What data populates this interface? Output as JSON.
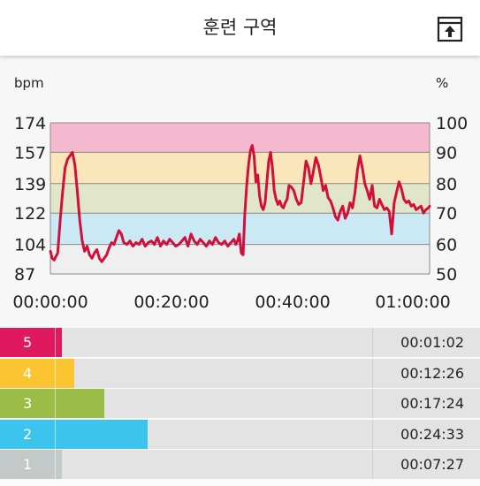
{
  "header": {
    "title": "훈련 구역",
    "export_icon": "export-icon"
  },
  "chart_data": {
    "type": "line",
    "left_unit": "bpm",
    "right_unit": "%",
    "y_ticks_left": [
      "174",
      "157",
      "139",
      "122",
      "104",
      "87"
    ],
    "y_ticks_right": [
      "100",
      "90",
      "80",
      "70",
      "60",
      "50"
    ],
    "x_ticks": [
      "00:00:00",
      "00:20:00",
      "00:40:00",
      "01:00:00"
    ],
    "ylim": [
      87,
      174
    ],
    "xlim_minutes": [
      0,
      62
    ],
    "bands": [
      {
        "from": 157,
        "to": 174,
        "color": "#f4b8cf"
      },
      {
        "from": 139,
        "to": 157,
        "color": "#fbe6bb"
      },
      {
        "from": 122,
        "to": 139,
        "color": "#e2e6c8"
      },
      {
        "from": 104,
        "to": 122,
        "color": "#cbe8f5"
      },
      {
        "from": 87,
        "to": 104,
        "color": "#efefef"
      }
    ],
    "line_color": "#d0103a",
    "series": [
      {
        "x": [
          0,
          0.3,
          0.6,
          0.9,
          1.2,
          1.6,
          2.0,
          2.4,
          2.8,
          3.2,
          3.6,
          4.0,
          4.4,
          4.8,
          5.2,
          5.6,
          6.0,
          6.4,
          6.8,
          7.2,
          7.6,
          8.0,
          8.4,
          8.8,
          9.2,
          9.6,
          10.0,
          10.4,
          10.8,
          11.2,
          11.6,
          12.0,
          12.5,
          13.0,
          13.5,
          14.0,
          14.5,
          15.0,
          15.5,
          16.0,
          16.5,
          17.0,
          17.5,
          18.0,
          18.5,
          19.0,
          19.5,
          20.0,
          20.5,
          21.0,
          21.5,
          22.0,
          22.5,
          23.0,
          23.5,
          24.0,
          24.5,
          25.0,
          25.5,
          26.0,
          26.5,
          27.0,
          27.5,
          28.0,
          28.5,
          29.0,
          29.5,
          30.0,
          30.3,
          30.6,
          30.9,
          31.2,
          31.5,
          31.8,
          32.1,
          32.4,
          32.7,
          33.0,
          33.3,
          33.6,
          33.9,
          34.2,
          34.5,
          34.8,
          35.1,
          35.4,
          35.7,
          36.0,
          36.3,
          36.6,
          36.9,
          37.2,
          37.5,
          37.8,
          38.1,
          38.4,
          38.7,
          39.0,
          39.4,
          39.8,
          40.2,
          40.6,
          41.0,
          41.4,
          41.8,
          42.2,
          42.6,
          43.0,
          43.4,
          43.8,
          44.2,
          44.6,
          45.0,
          45.4,
          45.8,
          46.2,
          46.6,
          47.0,
          47.4,
          47.8,
          48.2,
          48.6,
          49.0,
          49.4,
          49.8,
          50.2,
          50.6,
          51.0,
          51.4,
          51.8,
          52.2,
          52.6,
          53.0,
          53.4,
          53.8,
          54.2,
          54.6,
          55.0,
          55.4,
          55.8,
          56.2,
          56.6,
          57.0,
          57.4,
          57.8,
          58.2,
          58.6,
          59.0,
          59.4,
          59.8,
          60.2,
          60.6,
          61.0,
          61.4,
          61.8,
          62.0
        ],
        "y": [
          100,
          96,
          95,
          97,
          99,
          118,
          134,
          148,
          153,
          155,
          157,
          150,
          135,
          118,
          106,
          100,
          103,
          98,
          96,
          99,
          101,
          96,
          94,
          96,
          98,
          102,
          105,
          104,
          108,
          112,
          110,
          105,
          104,
          106,
          103,
          105,
          104,
          107,
          103,
          105,
          106,
          104,
          108,
          103,
          106,
          104,
          107,
          105,
          103,
          104,
          106,
          108,
          103,
          110,
          106,
          104,
          107,
          105,
          103,
          106,
          104,
          108,
          105,
          104,
          106,
          103,
          105,
          107,
          104,
          106,
          110,
          99,
          98,
          122,
          138,
          150,
          158,
          161,
          155,
          140,
          144,
          132,
          126,
          124,
          128,
          140,
          152,
          157,
          148,
          135,
          130,
          127,
          129,
          126,
          125,
          128,
          130,
          138,
          137,
          135,
          130,
          127,
          128,
          140,
          152,
          148,
          139,
          146,
          154,
          150,
          143,
          135,
          138,
          131,
          129,
          125,
          120,
          118,
          123,
          126,
          119,
          122,
          128,
          125,
          134,
          147,
          155,
          148,
          139,
          135,
          130,
          138,
          126,
          125,
          130,
          127,
          124,
          125,
          123,
          110,
          128,
          134,
          140,
          136,
          130,
          128,
          129,
          126,
          127,
          124,
          125,
          126,
          122,
          124,
          125,
          126
        ]
      }
    ]
  },
  "zones": [
    {
      "label": "5",
      "time": "00:01:02",
      "fraction": 0.0167,
      "color": "#e0195f"
    },
    {
      "label": "4",
      "time": "00:12:26",
      "fraction": 0.2006,
      "color": "#fbc531"
    },
    {
      "label": "3",
      "time": "00:17:24",
      "fraction": 0.2806,
      "color": "#9bbd47"
    },
    {
      "label": "2",
      "time": "00:24:33",
      "fraction": 0.396,
      "color": "#3dc4ee"
    },
    {
      "label": "1",
      "time": "00:07:27",
      "fraction": 0.1202,
      "color": "#c2c9c8"
    }
  ]
}
